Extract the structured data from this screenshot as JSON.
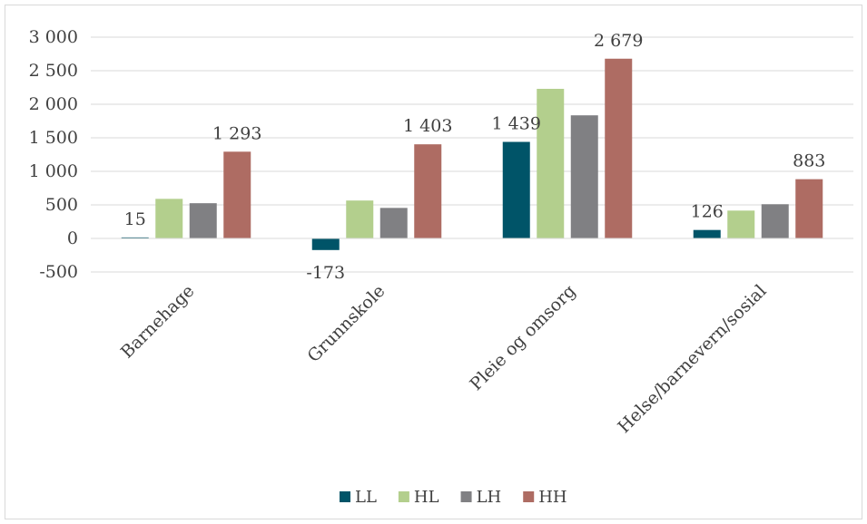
{
  "chart_data": {
    "type": "bar",
    "categories": [
      "Barnehage",
      "Grunnskole",
      "Pleie og omsorg",
      "Helse/barnevern/sosial"
    ],
    "series": [
      {
        "name": "LL",
        "color": "#005468",
        "values": [
          15,
          -173,
          1439,
          126
        ]
      },
      {
        "name": "HL",
        "color": "#b3cf8d",
        "values": [
          590,
          565,
          2230,
          415
        ]
      },
      {
        "name": "LH",
        "color": "#808083",
        "values": [
          525,
          455,
          1835,
          510
        ]
      },
      {
        "name": "HH",
        "color": "#ae6c63",
        "values": [
          1293,
          1403,
          2679,
          883
        ]
      }
    ],
    "data_labels": [
      {
        "series": "LL",
        "category": "Barnehage",
        "text": "15"
      },
      {
        "series": "HH",
        "category": "Barnehage",
        "text": "1 293"
      },
      {
        "series": "LL",
        "category": "Grunnskole",
        "text": "-173"
      },
      {
        "series": "HH",
        "category": "Grunnskole",
        "text": "1 403"
      },
      {
        "series": "LL",
        "category": "Pleie og omsorg",
        "text": "1 439"
      },
      {
        "series": "HH",
        "category": "Pleie og omsorg",
        "text": "2 679"
      },
      {
        "series": "LL",
        "category": "Helse/barnevern/sosial",
        "text": "126"
      },
      {
        "series": "HH",
        "category": "Helse/barnevern/sosial",
        "text": "883"
      }
    ],
    "yticks": [
      -500,
      0,
      500,
      1000,
      1500,
      2000,
      2500,
      3000
    ],
    "ytick_labels": [
      "-500",
      "0",
      "500",
      "1 000",
      "1 500",
      "2 000",
      "2 500",
      "3 000"
    ],
    "ylim": [
      -500,
      3000
    ],
    "title": "",
    "xlabel": "",
    "ylabel": "",
    "grid": true,
    "legend_position": "bottom"
  }
}
